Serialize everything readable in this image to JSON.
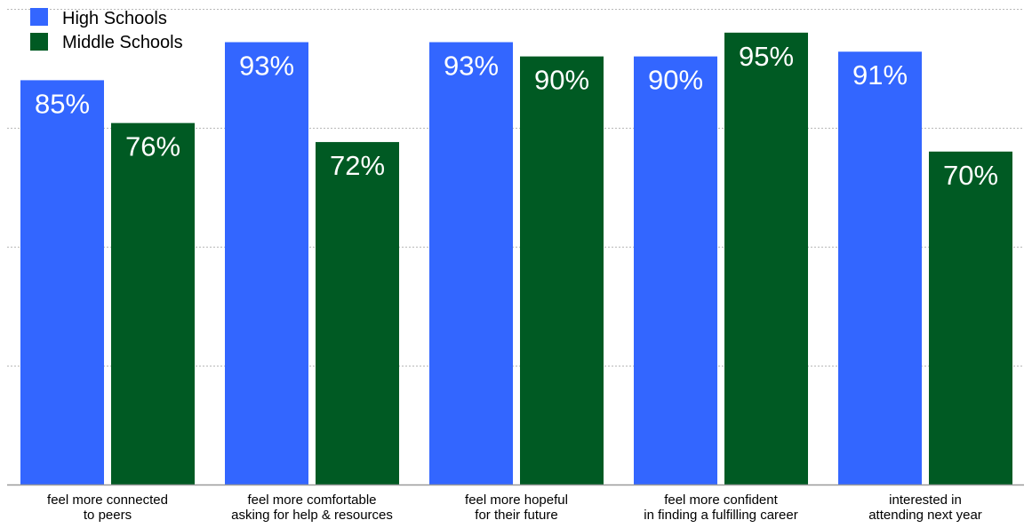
{
  "chart_data": {
    "type": "bar",
    "categories": [
      [
        "feel more connected",
        "to peers"
      ],
      [
        "feel more comfortable",
        "asking for help & resources"
      ],
      [
        "feel more hopeful",
        "for their future"
      ],
      [
        "feel more confident",
        "in finding a fulfilling career"
      ],
      [
        "interested in",
        "attending next year"
      ]
    ],
    "series": [
      {
        "name": "High Schools",
        "color": "#3366ff",
        "values": [
          85,
          93,
          93,
          90,
          91
        ]
      },
      {
        "name": "Middle Schools",
        "color": "#005a23",
        "values": [
          76,
          72,
          90,
          95,
          70
        ]
      }
    ],
    "value_suffix": "%",
    "ylim": [
      0,
      100
    ],
    "grid": true,
    "legend_position": "top-left"
  }
}
